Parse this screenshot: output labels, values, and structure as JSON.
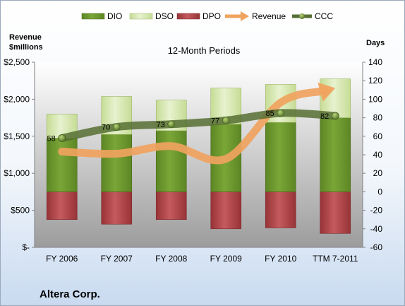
{
  "company": "Altera Corp.",
  "chart_data": {
    "type": "bar",
    "title": "12-Month Periods",
    "categories": [
      "FY 2006",
      "FY 2007",
      "FY 2008",
      "FY 2009",
      "FY 2010",
      "TTM 7-2011"
    ],
    "left_axis": {
      "label_line1": "Revenue",
      "label_line2": "$millions",
      "range": [
        0,
        2500
      ],
      "ticks": [
        "$-",
        "$500",
        "$1,000",
        "$1,500",
        "$2,000",
        "$2,500"
      ],
      "tick_values": [
        0,
        500,
        1000,
        1500,
        2000,
        2500
      ]
    },
    "right_axis": {
      "label": "Days",
      "range": [
        -60,
        140
      ],
      "ticks": [
        "-60",
        "-40",
        "-20",
        "0",
        "20",
        "40",
        "60",
        "80",
        "100",
        "120",
        "140"
      ],
      "tick_values": [
        -60,
        -40,
        -20,
        0,
        20,
        40,
        60,
        80,
        100,
        120,
        140
      ]
    },
    "series": [
      {
        "name": "DIO",
        "axis": "right",
        "kind": "stacked-bar",
        "color": "#6e9a2a",
        "values": [
          58,
          62,
          66,
          73,
          75,
          80
        ]
      },
      {
        "name": "DSO",
        "axis": "right",
        "kind": "stacked-bar",
        "color": "#d9eab5",
        "values": [
          26,
          41,
          33,
          39,
          41,
          42
        ]
      },
      {
        "name": "DPO",
        "axis": "right",
        "kind": "negative-bar",
        "color": "#b2474a",
        "values": [
          -30,
          -35,
          -30,
          -40,
          -39,
          -45
        ]
      },
      {
        "name": "Revenue",
        "axis": "left",
        "kind": "arrow-line",
        "color": "#f0a35e",
        "values": [
          1293,
          1264,
          1367,
          1195,
          1955,
          2150
        ]
      },
      {
        "name": "CCC",
        "axis": "right",
        "kind": "line",
        "color": "#566e33",
        "values": [
          58,
          70,
          73,
          77,
          85,
          82
        ]
      }
    ],
    "data_labels": [
      "58",
      "70",
      "73",
      "77",
      "85",
      "82"
    ],
    "legend_position": "top",
    "grid": false,
    "colors": {
      "plot_bg_top": "#ffffff",
      "plot_bg_bottom": "#9c9c9c",
      "axis": "#7f7f7f"
    }
  }
}
